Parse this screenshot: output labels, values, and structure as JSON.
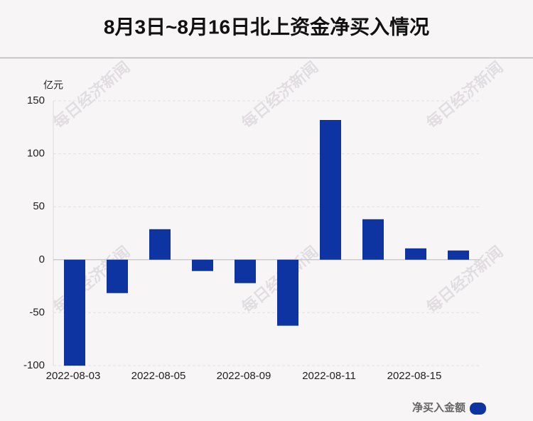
{
  "chart_data": {
    "type": "bar",
    "title": "8月3日~8月16日北上资金净买入情况",
    "y_label": "亿元",
    "watermark": "每日经济新闻",
    "categories": [
      "2022-08-03",
      null,
      "2022-08-05",
      null,
      "2022-08-09",
      null,
      "2022-08-11",
      null,
      "2022-08-15",
      null
    ],
    "series": [
      {
        "name": "净买入金额",
        "color": "#0d34a0",
        "values": [
          -100,
          -31.5,
          28.8,
          -10.7,
          -22.1,
          -62.3,
          131.9,
          38.2,
          10.7,
          8.7
        ]
      }
    ],
    "ylim": [
      -100,
      150
    ],
    "yticks": [
      -100,
      -50,
      0,
      50,
      100,
      150
    ],
    "grid": true,
    "legend": "bottom-right"
  }
}
